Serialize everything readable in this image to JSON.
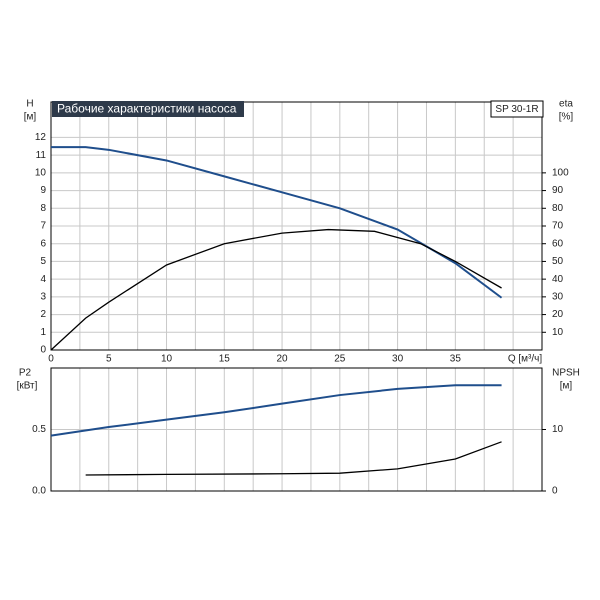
{
  "chart_data": [
    {
      "type": "line",
      "title": "Рабочие характеристики насоса",
      "model": "SP 30-1R",
      "ylabel": "H",
      "yunit": "[м]",
      "y2label": "eta",
      "y2unit": "[%]",
      "xlabel": "Q [м³/ч]",
      "xlim": [
        0,
        42.5
      ],
      "xticks": [
        0,
        5,
        10,
        15,
        20,
        25,
        30,
        35
      ],
      "ylim": [
        0,
        14
      ],
      "yticks": [
        0,
        1,
        2,
        3,
        4,
        5,
        6,
        7,
        8,
        9,
        10,
        11,
        12
      ],
      "y2lim": [
        0,
        140
      ],
      "y2ticks": [
        10,
        20,
        30,
        40,
        50,
        60,
        70,
        80,
        90,
        100
      ],
      "grid": true,
      "series": [
        {
          "color": "#1f4e8c",
          "x": [
            0,
            3,
            5,
            10,
            15,
            20,
            25,
            30,
            35,
            39
          ],
          "values": [
            11.45,
            11.45,
            11.3,
            10.7,
            9.8,
            8.9,
            8.0,
            6.8,
            4.9,
            2.95
          ]
        },
        {
          "color": "#000000",
          "axis": "y2",
          "x": [
            0,
            3,
            5,
            10,
            15,
            20,
            24,
            28,
            32,
            35,
            39
          ],
          "values": [
            0,
            18,
            27,
            48,
            60,
            66,
            68,
            67,
            60,
            50,
            35
          ]
        }
      ]
    },
    {
      "type": "line",
      "ylabel": "P2",
      "yunit": "[кВт]",
      "y2label": "NPSH",
      "y2unit": "[м]",
      "xlim": [
        0,
        42.5
      ],
      "xticks": [
        0,
        5,
        10,
        15,
        20,
        25,
        30,
        35
      ],
      "ylim": [
        0,
        1
      ],
      "yticks": [
        {
          "value": 0,
          "label": "0.0"
        },
        0.5
      ],
      "y2lim": [
        0,
        20
      ],
      "y2ticks": [
        0,
        10
      ],
      "grid": true,
      "series": [
        {
          "color": "#1f4e8c",
          "x": [
            0,
            5,
            10,
            15,
            20,
            25,
            30,
            35,
            39
          ],
          "values": [
            0.45,
            0.52,
            0.58,
            0.64,
            0.71,
            0.78,
            0.83,
            0.86,
            0.86
          ]
        },
        {
          "color": "#000000",
          "axis": "y2",
          "x": [
            3,
            10,
            20,
            25,
            30,
            35,
            39
          ],
          "values": [
            2.6,
            2.7,
            2.8,
            2.9,
            3.6,
            5.2,
            8.0
          ]
        }
      ]
    }
  ]
}
